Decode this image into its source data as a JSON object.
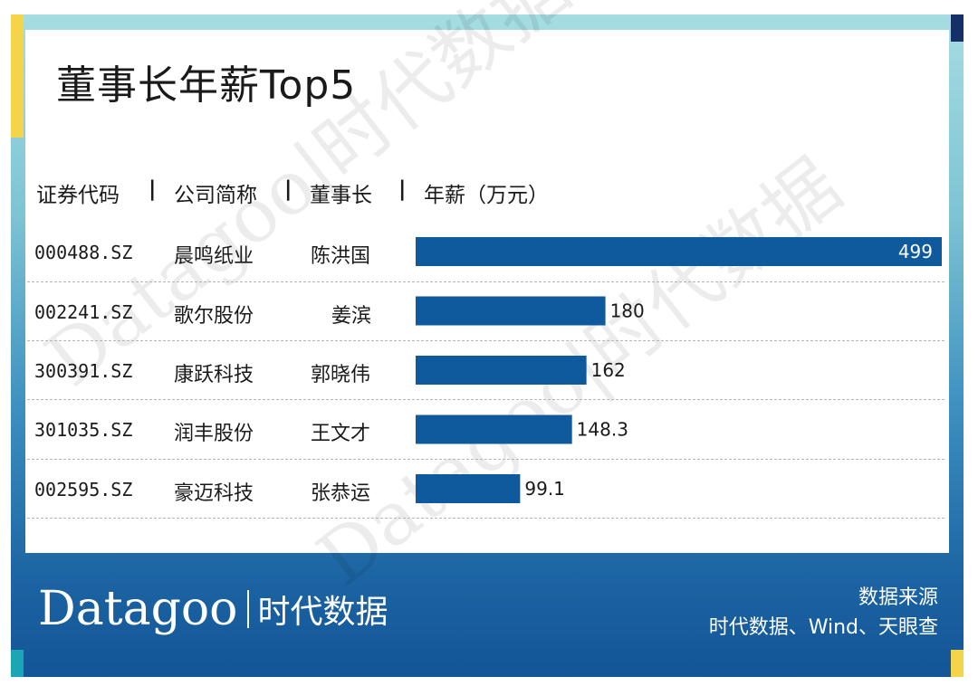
{
  "title": "董事长年薪Top5",
  "headers": {
    "code": "证券代码",
    "company": "公司简称",
    "chairman": "董事长",
    "salary": "年薪（万元）",
    "separator": "|"
  },
  "rows": [
    {
      "code": "000488.SZ",
      "company": "晨鸣纸业",
      "chairman": "陈洪国"
    },
    {
      "code": "002241.SZ",
      "company": "歌尔股份",
      "chairman": "姜滨"
    },
    {
      "code": "300391.SZ",
      "company": "康跃科技",
      "chairman": "郭晓伟"
    },
    {
      "code": "301035.SZ",
      "company": "润丰股份",
      "chairman": "王文才"
    },
    {
      "code": "002595.SZ",
      "company": "豪迈科技",
      "chairman": "张恭运"
    }
  ],
  "chart_data": {
    "type": "bar",
    "orientation": "horizontal",
    "title": "董事长年薪Top5",
    "categories": [
      "晨鸣纸业",
      "歌尔股份",
      "康跃科技",
      "润丰股份",
      "豪迈科技"
    ],
    "values": [
      499,
      180,
      162,
      148.3,
      99.1
    ],
    "value_labels": [
      "499",
      "180",
      "162",
      "148.3",
      "99.1"
    ],
    "xlim": [
      0,
      499
    ],
    "grid": false,
    "bar_color": "#0e5a9c"
  },
  "footer": {
    "logo_main": "Datagoo",
    "logo_cn": "时代数据",
    "source_title": "数据来源",
    "source_text": "时代数据、Wind、天眼查"
  },
  "watermark": {
    "text": "Datagoo|时代数据"
  },
  "colors": {
    "bar": "#0e5a9c",
    "accent_yellow": "#f5d44a",
    "accent_navy": "#163067",
    "accent_teal": "#1aa6b5"
  }
}
